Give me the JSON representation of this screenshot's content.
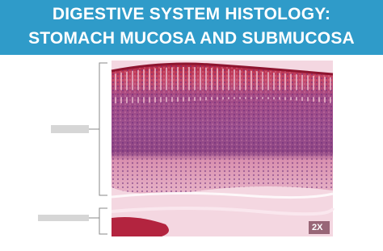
{
  "header": {
    "title_line_1": "DIGESTIVE SYSTEM HISTOLOGY:",
    "title_line_2": "STOMACH MUCOSA AND SUBMUCOSA"
  },
  "image": {
    "magnification": "2X"
  }
}
